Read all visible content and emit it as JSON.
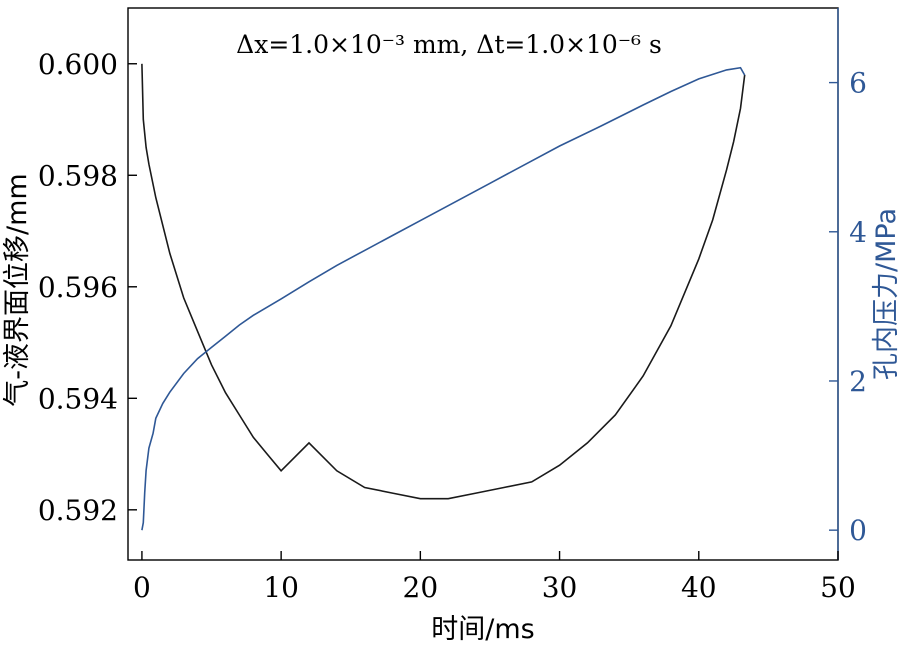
{
  "chart_data": {
    "type": "line",
    "title": "",
    "annotation": {
      "text": "Δx=1.0×10⁻³ mm, Δt=1.0×10⁻⁶ s"
    },
    "xlabel": "时间/ms",
    "ylabel_left": "气-液界面位移/mm",
    "ylabel_right": "孔内压力/MPa",
    "xlim": [
      -1,
      50
    ],
    "ylim_left": [
      0.5911,
      0.601
    ],
    "ylim_right": [
      -0.4,
      7.0
    ],
    "x_ticks": [
      0,
      10,
      20,
      30,
      40,
      50
    ],
    "x_tick_labels": [
      "0",
      "10",
      "20",
      "30",
      "40",
      "50"
    ],
    "y_left_ticks": [
      0.592,
      0.594,
      0.596,
      0.598,
      0.6
    ],
    "y_left_tick_labels": [
      "0.592",
      "0.594",
      "0.596",
      "0.598",
      "0.600"
    ],
    "y_right_ticks": [
      0,
      2,
      4,
      6
    ],
    "y_right_tick_labels": [
      "0",
      "2",
      "4",
      "6"
    ],
    "grid": false,
    "colors": {
      "left_axis": "#000000",
      "right_axis": "#2f5896",
      "displacement_line": "#1a1a1a",
      "pressure_line": "#2f5896"
    },
    "series": [
      {
        "axis": "left",
        "x": [
          0,
          0.1,
          0.3,
          0.5,
          1,
          2,
          3,
          4,
          5,
          6,
          7,
          8,
          9,
          10,
          12,
          14,
          16,
          18,
          20,
          21,
          22,
          24,
          26,
          28,
          30,
          32,
          34,
          36,
          38,
          40,
          41,
          42,
          42.5,
          43,
          43.3
        ],
        "y": [
          0.6,
          0.599,
          0.5985,
          0.5982,
          0.5976,
          0.5966,
          0.5958,
          0.5952,
          0.5946,
          0.5941,
          0.5937,
          0.5933,
          0.593,
          0.5927,
          0.5932,
          0.5927,
          0.5924,
          0.5923,
          0.5922,
          0.5922,
          0.5922,
          0.5923,
          0.5924,
          0.5925,
          0.5928,
          0.5932,
          0.5937,
          0.5944,
          0.5953,
          0.5965,
          0.5972,
          0.5981,
          0.5986,
          0.5992,
          0.5998
        ]
      },
      {
        "axis": "right",
        "x": [
          0,
          0.1,
          0.2,
          0.3,
          0.5,
          0.8,
          1,
          1.5,
          2,
          3,
          4,
          5,
          6,
          7,
          8,
          10,
          12,
          14,
          16,
          18,
          20,
          22,
          25,
          28,
          30,
          33,
          36,
          38,
          40,
          42,
          43,
          43.3
        ],
        "y": [
          0.0,
          0.1,
          0.5,
          0.8,
          1.1,
          1.3,
          1.5,
          1.7,
          1.85,
          2.1,
          2.3,
          2.45,
          2.6,
          2.75,
          2.88,
          3.1,
          3.33,
          3.55,
          3.75,
          3.95,
          4.15,
          4.35,
          4.65,
          4.95,
          5.15,
          5.42,
          5.7,
          5.88,
          6.05,
          6.17,
          6.2,
          6.1
        ]
      }
    ]
  }
}
